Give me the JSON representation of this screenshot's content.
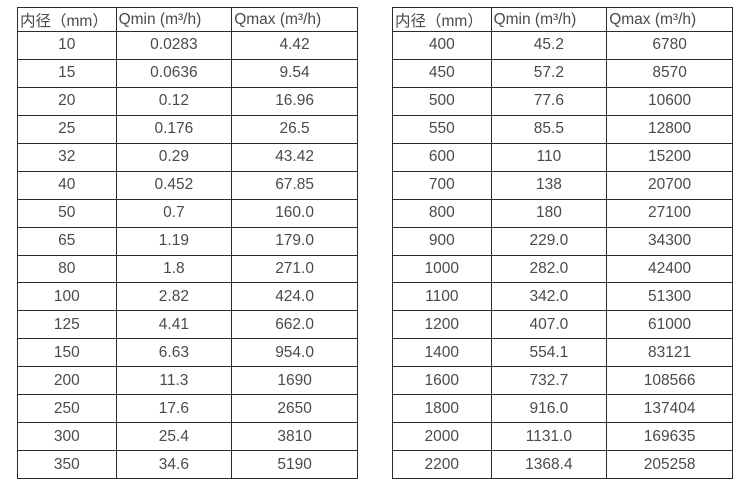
{
  "columns": [
    "内径（mm）",
    "Qmin (m³/h)",
    "Qmax (m³/h)"
  ],
  "colors": {
    "background": "#ffffff",
    "border": "#2b2b2b",
    "text": "#4a4a4a"
  },
  "tables": [
    {
      "rows": [
        [
          "10",
          "0.0283",
          "4.42"
        ],
        [
          "15",
          "0.0636",
          "9.54"
        ],
        [
          "20",
          "0.12",
          "16.96"
        ],
        [
          "25",
          "0.176",
          "26.5"
        ],
        [
          "32",
          "0.29",
          "43.42"
        ],
        [
          "40",
          "0.452",
          "67.85"
        ],
        [
          "50",
          "0.7",
          "160.0"
        ],
        [
          "65",
          "1.19",
          "179.0"
        ],
        [
          "80",
          "1.8",
          "271.0"
        ],
        [
          "100",
          "2.82",
          "424.0"
        ],
        [
          "125",
          "4.41",
          "662.0"
        ],
        [
          "150",
          "6.63",
          "954.0"
        ],
        [
          "200",
          "11.3",
          "1690"
        ],
        [
          "250",
          "17.6",
          "2650"
        ],
        [
          "300",
          "25.4",
          "3810"
        ],
        [
          "350",
          "34.6",
          "5190"
        ]
      ]
    },
    {
      "rows": [
        [
          "400",
          "45.2",
          "6780"
        ],
        [
          "450",
          "57.2",
          "8570"
        ],
        [
          "500",
          "77.6",
          "10600"
        ],
        [
          "550",
          "85.5",
          "12800"
        ],
        [
          "600",
          "110",
          "15200"
        ],
        [
          "700",
          "138",
          "20700"
        ],
        [
          "800",
          "180",
          "27100"
        ],
        [
          "900",
          "229.0",
          "34300"
        ],
        [
          "1000",
          "282.0",
          "42400"
        ],
        [
          "1100",
          "342.0",
          "51300"
        ],
        [
          "1200",
          "407.0",
          "61000"
        ],
        [
          "1400",
          "554.1",
          "83121"
        ],
        [
          "1600",
          "732.7",
          "108566"
        ],
        [
          "1800",
          "916.0",
          "137404"
        ],
        [
          "2000",
          "1131.0",
          "169635"
        ],
        [
          "2200",
          "1368.4",
          "205258"
        ]
      ]
    }
  ]
}
